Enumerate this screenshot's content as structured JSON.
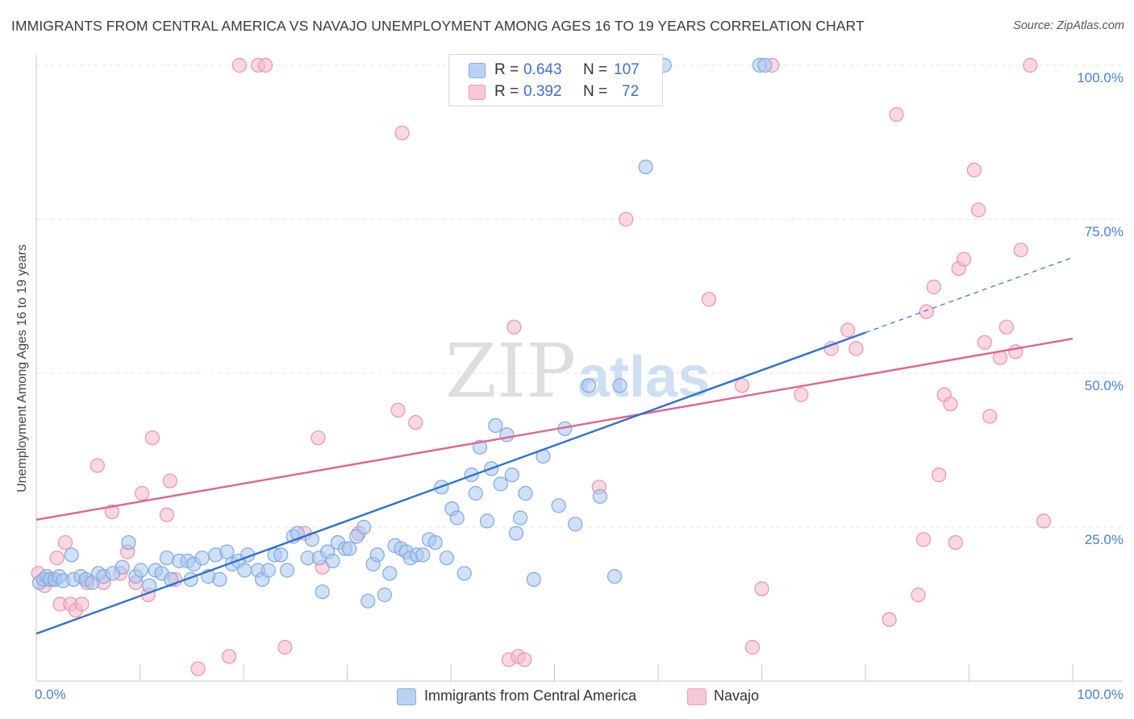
{
  "header": {
    "title": "IMMIGRANTS FROM CENTRAL AMERICA VS NAVAJO UNEMPLOYMENT AMONG AGES 16 TO 19 YEARS CORRELATION CHART",
    "source": "Source: ZipAtlas.com"
  },
  "watermark": {
    "zip": "ZIP",
    "atlas": "atlas"
  },
  "legend": {
    "r_label": "R = ",
    "n_label": "N = ",
    "series1": {
      "r": "0.643",
      "n": "107"
    },
    "series2": {
      "r": "0.392",
      "n": "72"
    }
  },
  "colors": {
    "blue_fill": "#a9c7ef",
    "blue_stroke": "#7ea9e2",
    "blue_line": "#2f6fd0",
    "pink_fill": "#f5b8cb",
    "pink_stroke": "#ee90ae",
    "pink_line": "#e0648f",
    "tick_text": "#4a7fd4"
  },
  "chart_data": {
    "type": "scatter",
    "title": "IMMIGRANTS FROM CENTRAL AMERICA VS NAVAJO UNEMPLOYMENT AMONG AGES 16 TO 19 YEARS CORRELATION CHART",
    "xlabel": "",
    "ylabel": "Unemployment Among Ages 16 to 19 years",
    "xlim": [
      0,
      100
    ],
    "ylim": [
      0,
      100
    ],
    "x_tick_labels": [
      "0.0%",
      "100.0%"
    ],
    "y_ticks": [
      25,
      50,
      75,
      100
    ],
    "y_tick_labels": [
      "25.0%",
      "50.0%",
      "75.0%",
      "100.0%"
    ],
    "grid": true,
    "legend_position": "top-center",
    "series": [
      {
        "name": "Immigrants from Central America",
        "color": "#a9c7ef",
        "trend": {
          "x0": 0,
          "y0": 7.7,
          "x1": 80,
          "y1": 56.6,
          "dashed_to_x": 100,
          "dashed_to_y": 68.8
        },
        "points": [
          [
            0.3,
            16
          ],
          [
            0.7,
            16.5
          ],
          [
            1.0,
            17
          ],
          [
            1.3,
            16.5
          ],
          [
            1.8,
            16.5
          ],
          [
            2.2,
            17
          ],
          [
            2.6,
            16.3
          ],
          [
            3.4,
            20.5
          ],
          [
            3.6,
            16.5
          ],
          [
            4.3,
            17
          ],
          [
            4.8,
            16.5
          ],
          [
            5.4,
            16
          ],
          [
            6.0,
            17.5
          ],
          [
            6.5,
            17
          ],
          [
            7.4,
            17.5
          ],
          [
            8.3,
            18.5
          ],
          [
            8.9,
            22.5
          ],
          [
            9.6,
            17
          ],
          [
            10.1,
            18
          ],
          [
            10.9,
            15.5
          ],
          [
            11.5,
            18
          ],
          [
            12.1,
            17.5
          ],
          [
            12.6,
            20
          ],
          [
            13.0,
            16.5
          ],
          [
            13.8,
            19.5
          ],
          [
            14.6,
            19.5
          ],
          [
            14.9,
            16.5
          ],
          [
            15.2,
            19
          ],
          [
            16.0,
            20
          ],
          [
            16.6,
            17
          ],
          [
            17.3,
            20.5
          ],
          [
            17.7,
            16.5
          ],
          [
            18.4,
            21
          ],
          [
            18.9,
            19
          ],
          [
            19.5,
            19.5
          ],
          [
            20.1,
            18
          ],
          [
            20.4,
            20.5
          ],
          [
            21.4,
            18
          ],
          [
            21.8,
            16.5
          ],
          [
            22.4,
            18
          ],
          [
            23.0,
            20.5
          ],
          [
            23.6,
            20.5
          ],
          [
            24.2,
            18
          ],
          [
            24.8,
            23.5
          ],
          [
            25.2,
            24
          ],
          [
            26.2,
            20
          ],
          [
            26.6,
            23
          ],
          [
            27.3,
            20
          ],
          [
            27.6,
            14.5
          ],
          [
            28.1,
            21
          ],
          [
            28.6,
            19.5
          ],
          [
            29.1,
            22.5
          ],
          [
            29.8,
            21.5
          ],
          [
            30.2,
            21.5
          ],
          [
            30.9,
            23.5
          ],
          [
            31.6,
            25
          ],
          [
            32.0,
            13
          ],
          [
            32.5,
            19
          ],
          [
            32.9,
            20.5
          ],
          [
            33.6,
            14
          ],
          [
            34.1,
            17.5
          ],
          [
            34.6,
            22
          ],
          [
            35.2,
            21.5
          ],
          [
            35.7,
            21
          ],
          [
            36.1,
            20
          ],
          [
            36.7,
            20.5
          ],
          [
            37.3,
            20.5
          ],
          [
            37.9,
            23
          ],
          [
            38.5,
            22.5
          ],
          [
            39.1,
            31.5
          ],
          [
            39.6,
            20
          ],
          [
            40.1,
            28
          ],
          [
            40.6,
            26.5
          ],
          [
            41.3,
            17.5
          ],
          [
            42.0,
            33.5
          ],
          [
            42.4,
            30.5
          ],
          [
            42.8,
            38
          ],
          [
            43.5,
            26
          ],
          [
            43.9,
            34.5
          ],
          [
            44.3,
            41.5
          ],
          [
            44.8,
            32
          ],
          [
            45.4,
            40
          ],
          [
            45.9,
            33.5
          ],
          [
            46.3,
            24
          ],
          [
            46.7,
            26.5
          ],
          [
            47.2,
            30.5
          ],
          [
            48.0,
            16.5
          ],
          [
            48.9,
            36.5
          ],
          [
            50.4,
            28.5
          ],
          [
            51.0,
            41
          ],
          [
            52.0,
            25.5
          ],
          [
            53.3,
            48
          ],
          [
            54.4,
            30
          ],
          [
            55.8,
            17
          ],
          [
            56.3,
            48
          ],
          [
            58.8,
            83.5
          ],
          [
            59.7,
            100
          ],
          [
            60.6,
            100
          ],
          [
            69.8,
            100
          ],
          [
            70.3,
            100
          ]
        ]
      },
      {
        "name": "Navajo",
        "color": "#f5b8cb",
        "trend": {
          "x0": 0,
          "y0": 26.2,
          "x1": 100,
          "y1": 55.6
        },
        "points": [
          [
            0.2,
            17.5
          ],
          [
            0.8,
            15.5
          ],
          [
            1.5,
            16.5
          ],
          [
            2.0,
            20
          ],
          [
            2.3,
            12.5
          ],
          [
            2.8,
            22.5
          ],
          [
            3.3,
            12.5
          ],
          [
            3.8,
            11.5
          ],
          [
            4.4,
            12.5
          ],
          [
            4.9,
            16
          ],
          [
            5.9,
            35
          ],
          [
            6.5,
            16
          ],
          [
            7.3,
            27.5
          ],
          [
            8.1,
            17.5
          ],
          [
            8.8,
            21
          ],
          [
            9.6,
            16
          ],
          [
            10.2,
            30.5
          ],
          [
            10.8,
            14
          ],
          [
            11.2,
            39.5
          ],
          [
            12.6,
            27
          ],
          [
            12.9,
            32.5
          ],
          [
            13.4,
            16.5
          ],
          [
            15.6,
            2
          ],
          [
            18.6,
            4
          ],
          [
            19.6,
            100
          ],
          [
            21.4,
            100
          ],
          [
            22.1,
            100
          ],
          [
            24.0,
            5.5
          ],
          [
            25.9,
            24
          ],
          [
            27.2,
            39.5
          ],
          [
            27.6,
            18.5
          ],
          [
            31.1,
            24
          ],
          [
            34.9,
            44
          ],
          [
            35.3,
            89
          ],
          [
            36.6,
            42
          ],
          [
            45.6,
            3.5
          ],
          [
            46.1,
            57.5
          ],
          [
            46.5,
            4
          ],
          [
            47.1,
            3.5
          ],
          [
            49.0,
            100
          ],
          [
            50.2,
            100
          ],
          [
            54.3,
            31.5
          ],
          [
            56.9,
            75
          ],
          [
            64.9,
            62
          ],
          [
            68.1,
            48
          ],
          [
            69.1,
            5.5
          ],
          [
            70.0,
            15
          ],
          [
            71.0,
            100
          ],
          [
            73.8,
            46.5
          ],
          [
            76.7,
            54
          ],
          [
            78.3,
            57
          ],
          [
            79.1,
            54
          ],
          [
            82.3,
            10
          ],
          [
            83.0,
            92
          ],
          [
            85.1,
            14
          ],
          [
            85.6,
            23
          ],
          [
            85.9,
            60
          ],
          [
            86.6,
            64
          ],
          [
            87.1,
            33.5
          ],
          [
            87.6,
            46.5
          ],
          [
            88.2,
            45
          ],
          [
            88.7,
            22.5
          ],
          [
            89.0,
            67
          ],
          [
            89.5,
            68.5
          ],
          [
            90.5,
            83
          ],
          [
            90.9,
            76.5
          ],
          [
            91.5,
            55
          ],
          [
            92.0,
            43
          ],
          [
            93.0,
            52.5
          ],
          [
            93.6,
            57.5
          ],
          [
            94.5,
            53.5
          ],
          [
            95.0,
            70
          ],
          [
            95.9,
            100
          ],
          [
            97.2,
            26
          ]
        ]
      }
    ]
  },
  "bottom_legend": {
    "series1_label": "Immigrants from Central America",
    "series2_label": "Navajo"
  }
}
